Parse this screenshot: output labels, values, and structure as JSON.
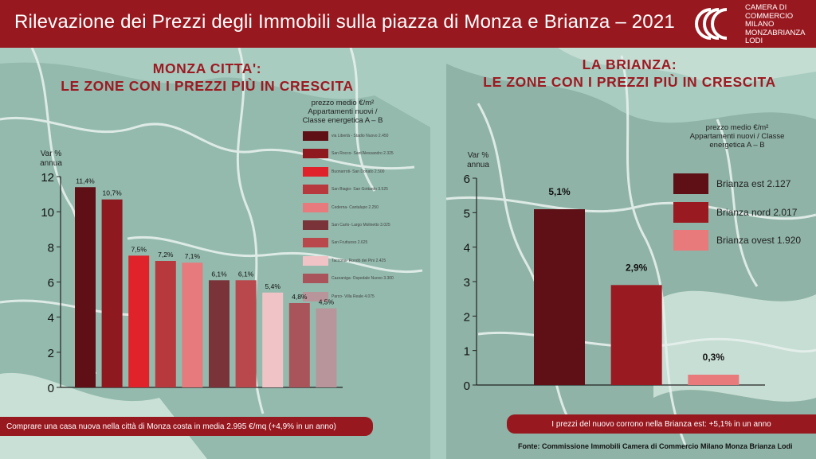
{
  "header": {
    "title": "Rilevazione dei Prezzi degli Immobili sulla piazza di Monza e Brianza – 2021",
    "logo_lines": [
      "CAMERA DI",
      "COMMERCIO",
      "MILANO",
      "MONZABRIANZA",
      "LODI"
    ]
  },
  "left_panel": {
    "title_line1": "MONZA CITTA':",
    "title_line2": "LE ZONE CON I PREZZI PIÙ IN CRESCITA",
    "legend_title_line1": "prezzo medio €/m²",
    "legend_title_line2": "Appartamenti nuovi /",
    "legend_title_line3": "Classe energetica A – B",
    "footer": "Comprare una casa nuova nella città di Monza costa in media 2.995 €/mq (+4,9% in un anno)"
  },
  "right_panel": {
    "title_line1": "LA BRIANZA:",
    "title_line2": "LE ZONE CON I PREZZI PIÙ IN CRESCITA",
    "legend_title_line1": "prezzo medio €/m²",
    "legend_title_line2": "Appartamenti nuovi / Classe",
    "legend_title_line3": "energetica A – B",
    "footer": "I prezzi del nuovo corrono nella Brianza est: +5,1% in un anno"
  },
  "source": "Fonte: Commissione Immobili Camera di Commercio Milano Monza Brianza Lodi",
  "chart_data": [
    {
      "type": "bar",
      "title": "MONZA CITTA': LE ZONE CON I PREZZI PIÙ IN CRESCITA",
      "ylabel": "Var % annua",
      "ylim": [
        0,
        12
      ],
      "yticks": [
        0,
        2,
        4,
        6,
        8,
        10,
        12
      ],
      "categories": [
        "via Libertà - Stadio Nuovo 2.450",
        "San Rocco- Sant'Alessandro 2.325",
        "Buonarroti- San Donato 2.500",
        "San Biagio- San Gottardo 3.525",
        "Cederna- Cantalupo 2.250",
        "San Carlo- Largo Molinetto 3.025",
        "San Fruttuoso 2.625",
        "Taccona- Rondò dei Pini 2.425",
        "Cazzaniga- Ospedale Nuovo 3.300",
        "Parco- Villa Reale 4.075"
      ],
      "values": [
        11.4,
        10.7,
        7.5,
        7.2,
        7.1,
        6.1,
        6.1,
        5.4,
        4.8,
        4.5
      ],
      "labels": [
        "11,4%",
        "10,7%",
        "7,5%",
        "7,2%",
        "7,1%",
        "6,1%",
        "6,1%",
        "5,4%",
        "4,8%",
        "4,5%"
      ],
      "colors": [
        "#5e1016",
        "#8e1a20",
        "#e0222a",
        "#b8393d",
        "#e77a7c",
        "#7a3338",
        "#b8484b",
        "#f0c4c6",
        "#a9535a",
        "#b8959a"
      ],
      "legend_position": "right"
    },
    {
      "type": "bar",
      "title": "LA BRIANZA: LE ZONE CON I PREZZI PIÙ IN CRESCITA",
      "ylabel": "Var % annua",
      "ylim": [
        0,
        6
      ],
      "yticks": [
        0,
        1,
        2,
        3,
        4,
        5,
        6
      ],
      "categories": [
        "Brianza est 2.127",
        "Brianza nord 2.017",
        "Brianza ovest 1.920"
      ],
      "values": [
        5.1,
        2.9,
        0.3
      ],
      "labels": [
        "5,1%",
        "2,9%",
        "0,3%"
      ],
      "colors": [
        "#5e1016",
        "#9a1a22",
        "#e87a7c"
      ],
      "legend_position": "top-right"
    }
  ]
}
